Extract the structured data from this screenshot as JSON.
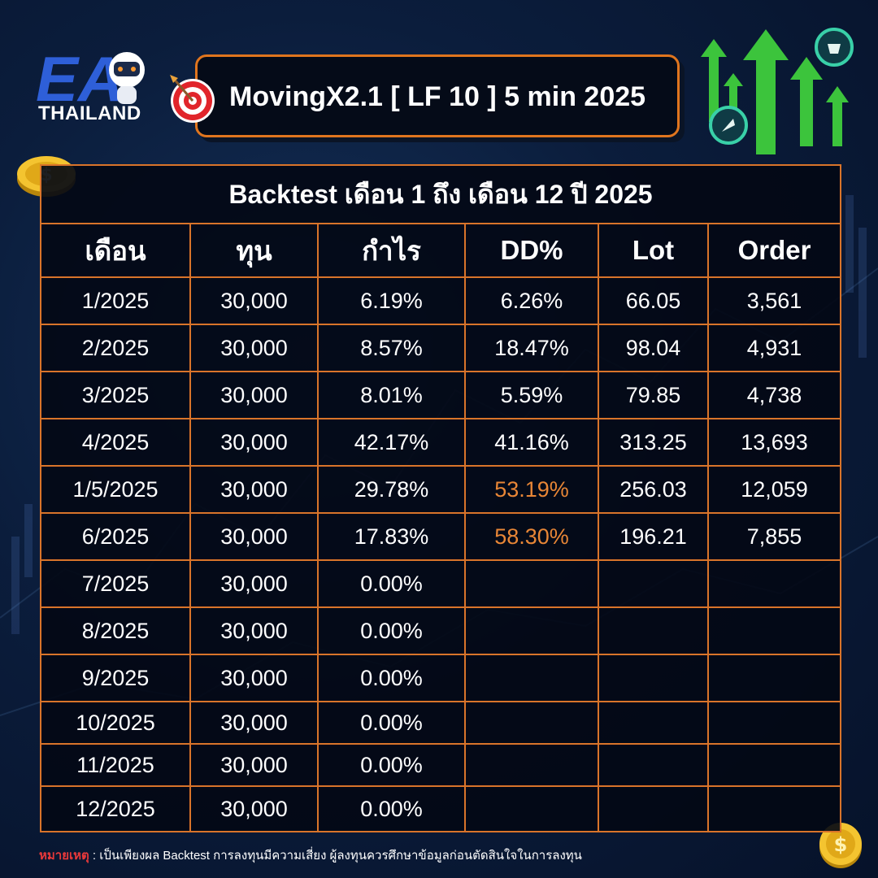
{
  "brand": {
    "logo_text": "THAILAND",
    "logo_mark": "EA"
  },
  "header": {
    "title": "MovingX2.1 [ LF 10 ] 5 min 2025",
    "icon": "target-icon"
  },
  "table": {
    "caption": "Backtest เดือน 1 ถึง เดือน 12 ปี 2025",
    "columns": [
      "เดือน",
      "ทุน",
      "กำไร",
      "DD%",
      "Lot",
      "Order"
    ],
    "rows": [
      {
        "month": "1/2025",
        "capital": "30,000",
        "profit": "6.19%",
        "dd": "6.26%",
        "lot": "66.05",
        "order": "3,561"
      },
      {
        "month": "2/2025",
        "capital": "30,000",
        "profit": "8.57%",
        "dd": "18.47%",
        "lot": "98.04",
        "order": "4,931"
      },
      {
        "month": "3/2025",
        "capital": "30,000",
        "profit": "8.01%",
        "dd": "5.59%",
        "lot": "79.85",
        "order": "4,738"
      },
      {
        "month": "4/2025",
        "capital": "30,000",
        "profit": "42.17%",
        "dd": "41.16%",
        "lot": "313.25",
        "order": "13,693"
      },
      {
        "month": "1/5/2025",
        "capital": "30,000",
        "profit": "29.78%",
        "dd": "53.19%",
        "lot": "256.03",
        "order": "12,059"
      },
      {
        "month": "6/2025",
        "capital": "30,000",
        "profit": "17.83%",
        "dd": "58.30%",
        "lot": "196.21",
        "order": "7,855"
      },
      {
        "month": "7/2025",
        "capital": "30,000",
        "profit": "0.00%",
        "dd": "",
        "lot": "",
        "order": ""
      },
      {
        "month": "8/2025",
        "capital": "30,000",
        "profit": "0.00%",
        "dd": "",
        "lot": "",
        "order": ""
      },
      {
        "month": "9/2025",
        "capital": "30,000",
        "profit": "0.00%",
        "dd": "",
        "lot": "",
        "order": ""
      },
      {
        "month": "10/2025",
        "capital": "30,000",
        "profit": "0.00%",
        "dd": "",
        "lot": "",
        "order": ""
      },
      {
        "month": "11/2025",
        "capital": "30,000",
        "profit": "0.00%",
        "dd": "",
        "lot": "",
        "order": ""
      },
      {
        "month": "12/2025",
        "capital": "30,000",
        "profit": "0.00%",
        "dd": "",
        "lot": "",
        "order": ""
      }
    ],
    "highlight_dd_rows": [
      4,
      5
    ]
  },
  "footnote": {
    "label": "หมายเหตุ",
    "text": " : เป็นเพียงผล Backtest การลงทุนมีความเสี่ยง ผู้ลงทุนควรศึกษาข้อมูลก่อนตัดสินใจในการลงทุน"
  },
  "colors": {
    "accent": "#e0751e",
    "warn_text": "#e88636",
    "background": "#0b1d3c",
    "note_label": "#e8393a",
    "arrow_green": "#3cc43c"
  }
}
